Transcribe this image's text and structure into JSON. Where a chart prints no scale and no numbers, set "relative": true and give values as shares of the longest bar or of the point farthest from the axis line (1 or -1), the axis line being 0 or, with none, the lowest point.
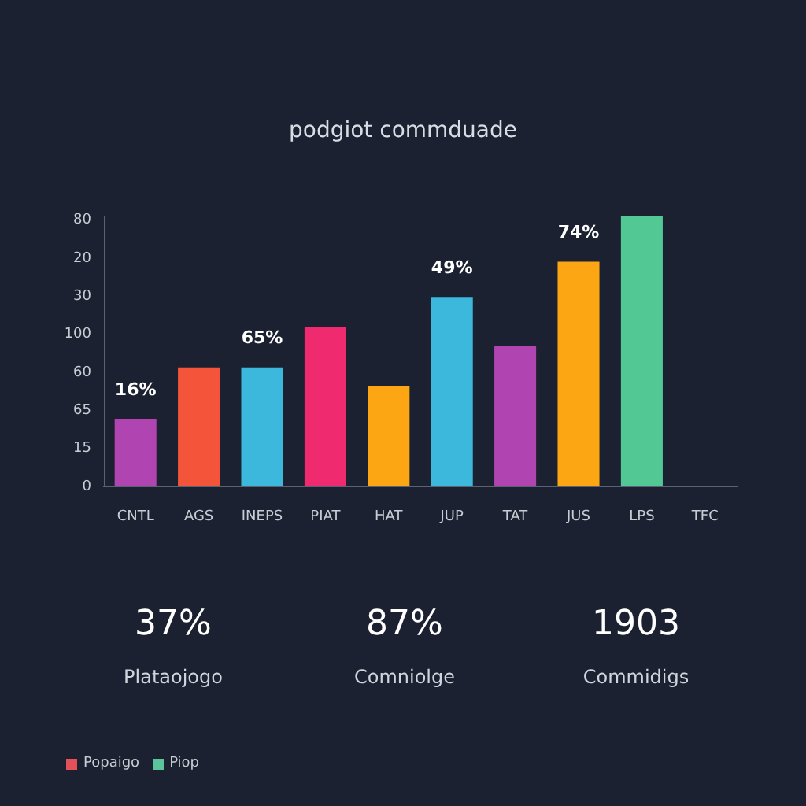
{
  "chart_data": [
    {
      "type": "bar",
      "relative": true,
      "subtitle": "podgiot commduade",
      "categories": [
        "CNTL",
        "AGS",
        "INEPS",
        "PIAT",
        "HAT",
        "JUP",
        "TAT",
        "JUS",
        "LPS",
        "TFC"
      ],
      "values": [
        0.25,
        0.44,
        0.44,
        0.59,
        0.37,
        0.7,
        0.52,
        0.83,
        1,
        null
      ],
      "colors": [
        "#b044b0",
        "#f4553a",
        "#3bb8dc",
        "#f02a6e",
        "#fca614",
        "#3bb8dc",
        "#b044b0",
        "#fca614",
        "#52c995",
        "#52c995"
      ],
      "annotations": [
        "0",
        "15",
        "65",
        "60",
        "100",
        "30",
        "20",
        "80",
        {
          "text": "16%",
          "x": "CNTL",
          "y": 0.25
        },
        {
          "text": "65%",
          "x": "INEPS",
          "y": 0.44
        },
        {
          "text": "49%",
          "x": "JUP",
          "y": 0.7
        },
        {
          "text": "74%",
          "x": "JUS",
          "y": 0.83
        }
      ]
    },
    {
      "type": "other",
      "annotations": [
        "37%",
        "Plataojogo",
        "87%",
        "Comniolge",
        "1903",
        "Commidigs"
      ]
    },
    {
      "type": "other",
      "categories": [
        "Popaigo",
        "Piop"
      ],
      "colors": [
        "#e4505a",
        "#5cc49a"
      ]
    }
  ]
}
